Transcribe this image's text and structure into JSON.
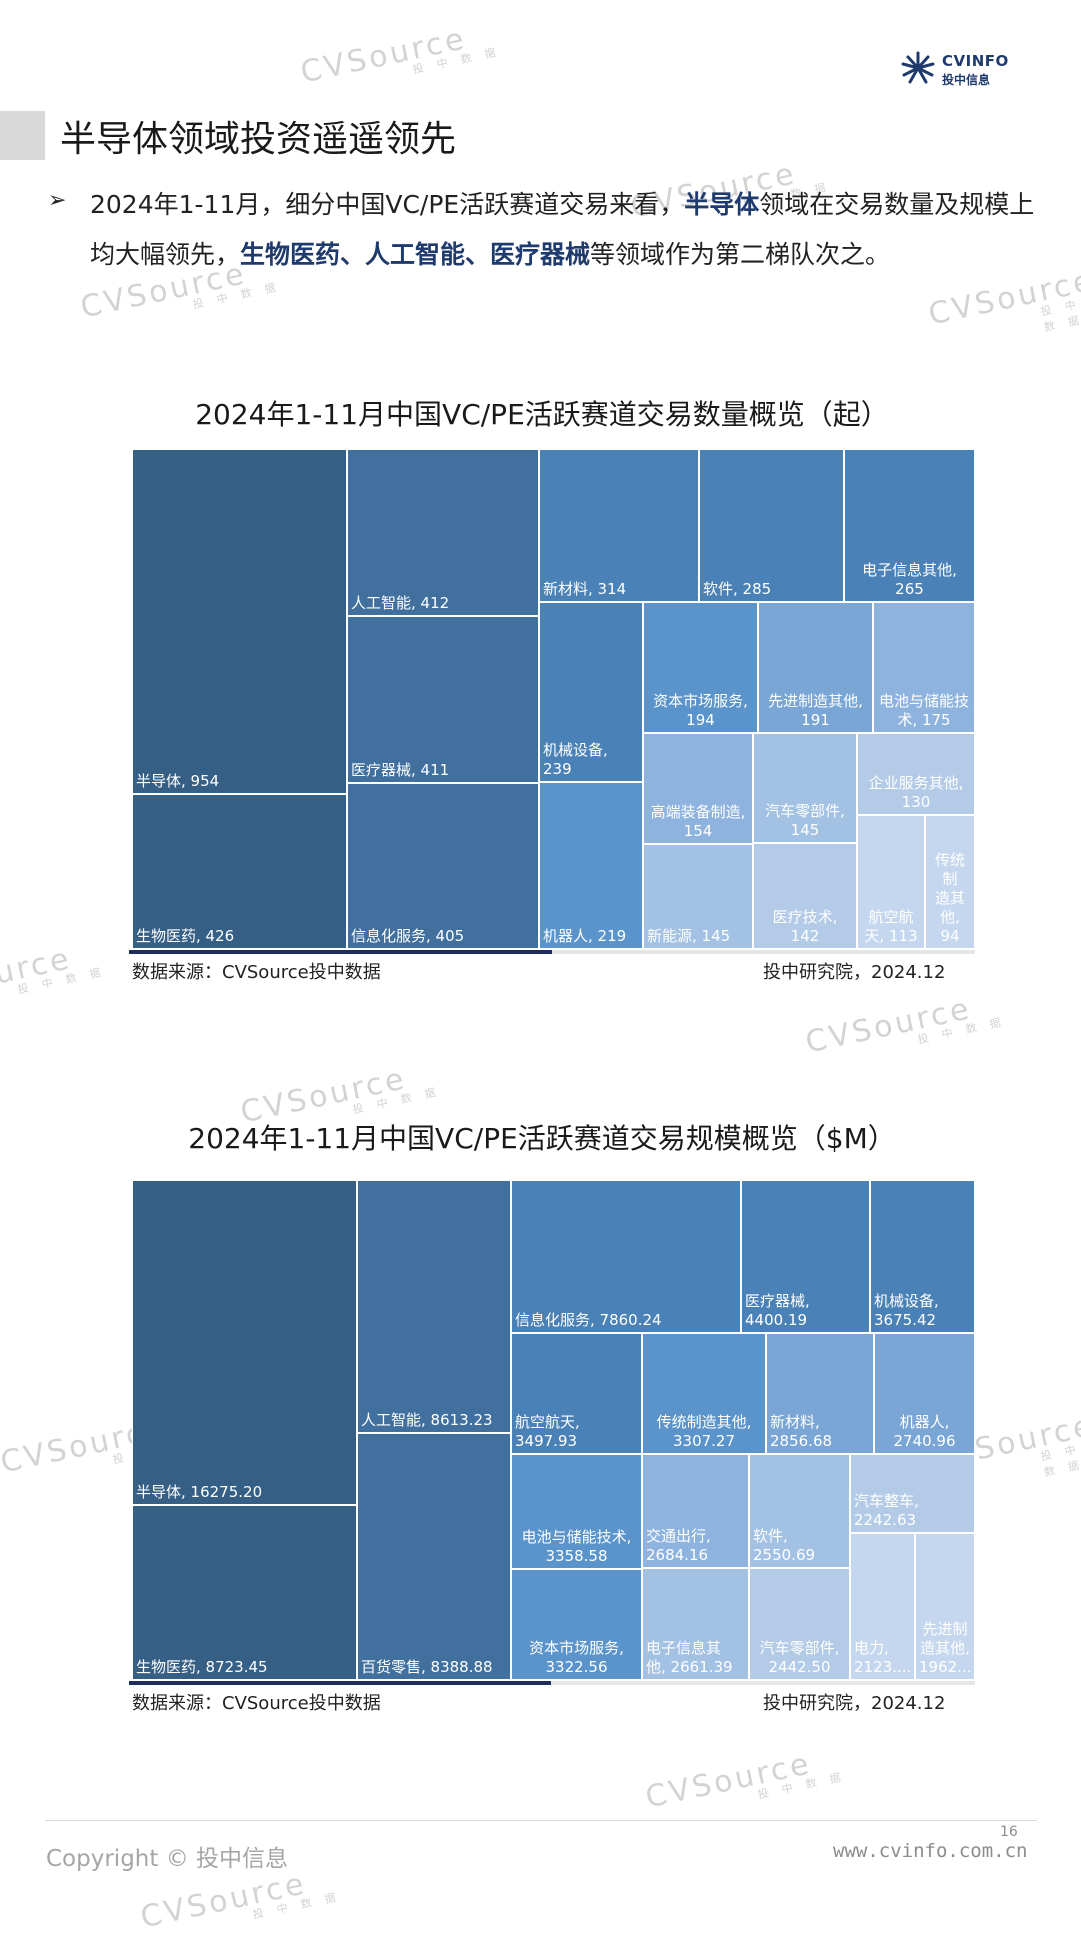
{
  "header": {
    "logo_name": "CVINFO",
    "logo_sub": "投中信息"
  },
  "page_title": "半导体领域投资遥遥领先",
  "bullet": {
    "part1": "2024年1-11月，细分中国VC/PE活跃赛道交易来看，",
    "bold1": "半导体",
    "part2": "领域在交易数量及规模上均大幅领先，",
    "bold2": "生物医药、人工智能、医疗器械",
    "part3": "等领域作为第二梯队次之。"
  },
  "watermark": {
    "main": "CVSource",
    "sub": "投 中 数 据"
  },
  "colors": {
    "tier1": "#365f85",
    "tier2": "#41709f",
    "tier3": "#4a81b6",
    "tier4": "#5a94cb",
    "tier5": "#7aa6d6",
    "tier6": "#8db3de",
    "tier7": "#a3c1e3",
    "tier8": "#b3cbe7",
    "tier9": "#c5d7ee"
  },
  "chart_data": [
    {
      "type": "treemap",
      "title": "2024年1-11月中国VC/PE活跃赛道交易数量概览（起）",
      "labels": [
        "半导体, 954",
        "生物医药, 426",
        "人工智能, 412",
        "医疗器械, 411",
        "信息化服务, 405",
        "新材料, 314",
        "软件, 285",
        "电子信息其他,\n265",
        "机械设备,\n239",
        "机器人, 219",
        "资本市场服务,\n194",
        "先进制造其他,\n191",
        "电池与储能技\n术, 175",
        "高端装备制造,\n154",
        "新能源, 145",
        "汽车零部件,\n145",
        "医疗技术,\n142",
        "企业服务其他,\n130",
        "航空航\n天, 113",
        "传统制\n造其\n他, 94"
      ],
      "items": [
        {
          "name": "半导体",
          "value": 954
        },
        {
          "name": "生物医药",
          "value": 426
        },
        {
          "name": "人工智能",
          "value": 412
        },
        {
          "name": "医疗器械",
          "value": 411
        },
        {
          "name": "信息化服务",
          "value": 405
        },
        {
          "name": "新材料",
          "value": 314
        },
        {
          "name": "软件",
          "value": 285
        },
        {
          "name": "电子信息其他",
          "value": 265
        },
        {
          "name": "机械设备",
          "value": 239
        },
        {
          "name": "机器人",
          "value": 219
        },
        {
          "name": "资本市场服务",
          "value": 194
        },
        {
          "name": "先进制造其他",
          "value": 191
        },
        {
          "name": "电池与储能技术",
          "value": 175
        },
        {
          "name": "高端装备制造",
          "value": 154
        },
        {
          "name": "新能源",
          "value": 145
        },
        {
          "name": "汽车零部件",
          "value": 145
        },
        {
          "name": "医疗技术",
          "value": 142
        },
        {
          "name": "企业服务其他",
          "value": 130
        },
        {
          "name": "航空航天",
          "value": 113
        },
        {
          "name": "传统制造其他",
          "value": 94
        }
      ],
      "source": "数据来源：CVSource投中数据",
      "credit": "投中研究院，2024.12"
    },
    {
      "type": "treemap",
      "title": "2024年1-11月中国VC/PE活跃赛道交易规模概览（$M）",
      "labels": [
        "半导体, 16275.20",
        "生物医药, 8723.45",
        "人工智能, 8613.23",
        "百货零售, 8388.88",
        "信息化服务, 7860.24",
        "医疗器械,\n4400.19",
        "机械设备,\n3675.42",
        "航空航天,\n3497.93",
        "传统制造其他,\n3307.27",
        "新材料,\n2856.68",
        "机器人,\n2740.96",
        "电池与储能技术,\n3358.58",
        "交通出行,\n2684.16",
        "软件,\n2550.69",
        "汽车整车,\n2242.63",
        "资本市场服务,\n3322.56",
        "电子信息其\n他, 2661.39",
        "汽车零部件,\n2442.50",
        "电力,\n2123....",
        "先进制\n造其他,\n1962..."
      ],
      "items": [
        {
          "name": "半导体",
          "value": 16275.2
        },
        {
          "name": "生物医药",
          "value": 8723.45
        },
        {
          "name": "人工智能",
          "value": 8613.23
        },
        {
          "name": "百货零售",
          "value": 8388.88
        },
        {
          "name": "信息化服务",
          "value": 7860.24
        },
        {
          "name": "医疗器械",
          "value": 4400.19
        },
        {
          "name": "机械设备",
          "value": 3675.42
        },
        {
          "name": "航空航天",
          "value": 3497.93
        },
        {
          "name": "传统制造其他",
          "value": 3307.27
        },
        {
          "name": "新材料",
          "value": 2856.68
        },
        {
          "name": "机器人",
          "value": 2740.96
        },
        {
          "name": "电池与储能技术",
          "value": 3358.58
        },
        {
          "name": "交通出行",
          "value": 2684.16
        },
        {
          "name": "软件",
          "value": 2550.69
        },
        {
          "name": "汽车整车",
          "value": 2242.63
        },
        {
          "name": "资本市场服务",
          "value": 3322.56
        },
        {
          "name": "电子信息其他",
          "value": 2661.39
        },
        {
          "name": "汽车零部件",
          "value": 2442.5
        },
        {
          "name": "电力",
          "value": 2123
        },
        {
          "name": "先进制造其他",
          "value": 1962
        }
      ],
      "source": "数据来源：CVSource投中数据",
      "credit": "投中研究院，2024.12"
    }
  ],
  "footer": {
    "copyright": "Copyright © 投中信息",
    "website": "www.cvinfo.com.cn",
    "page_number": "16"
  }
}
